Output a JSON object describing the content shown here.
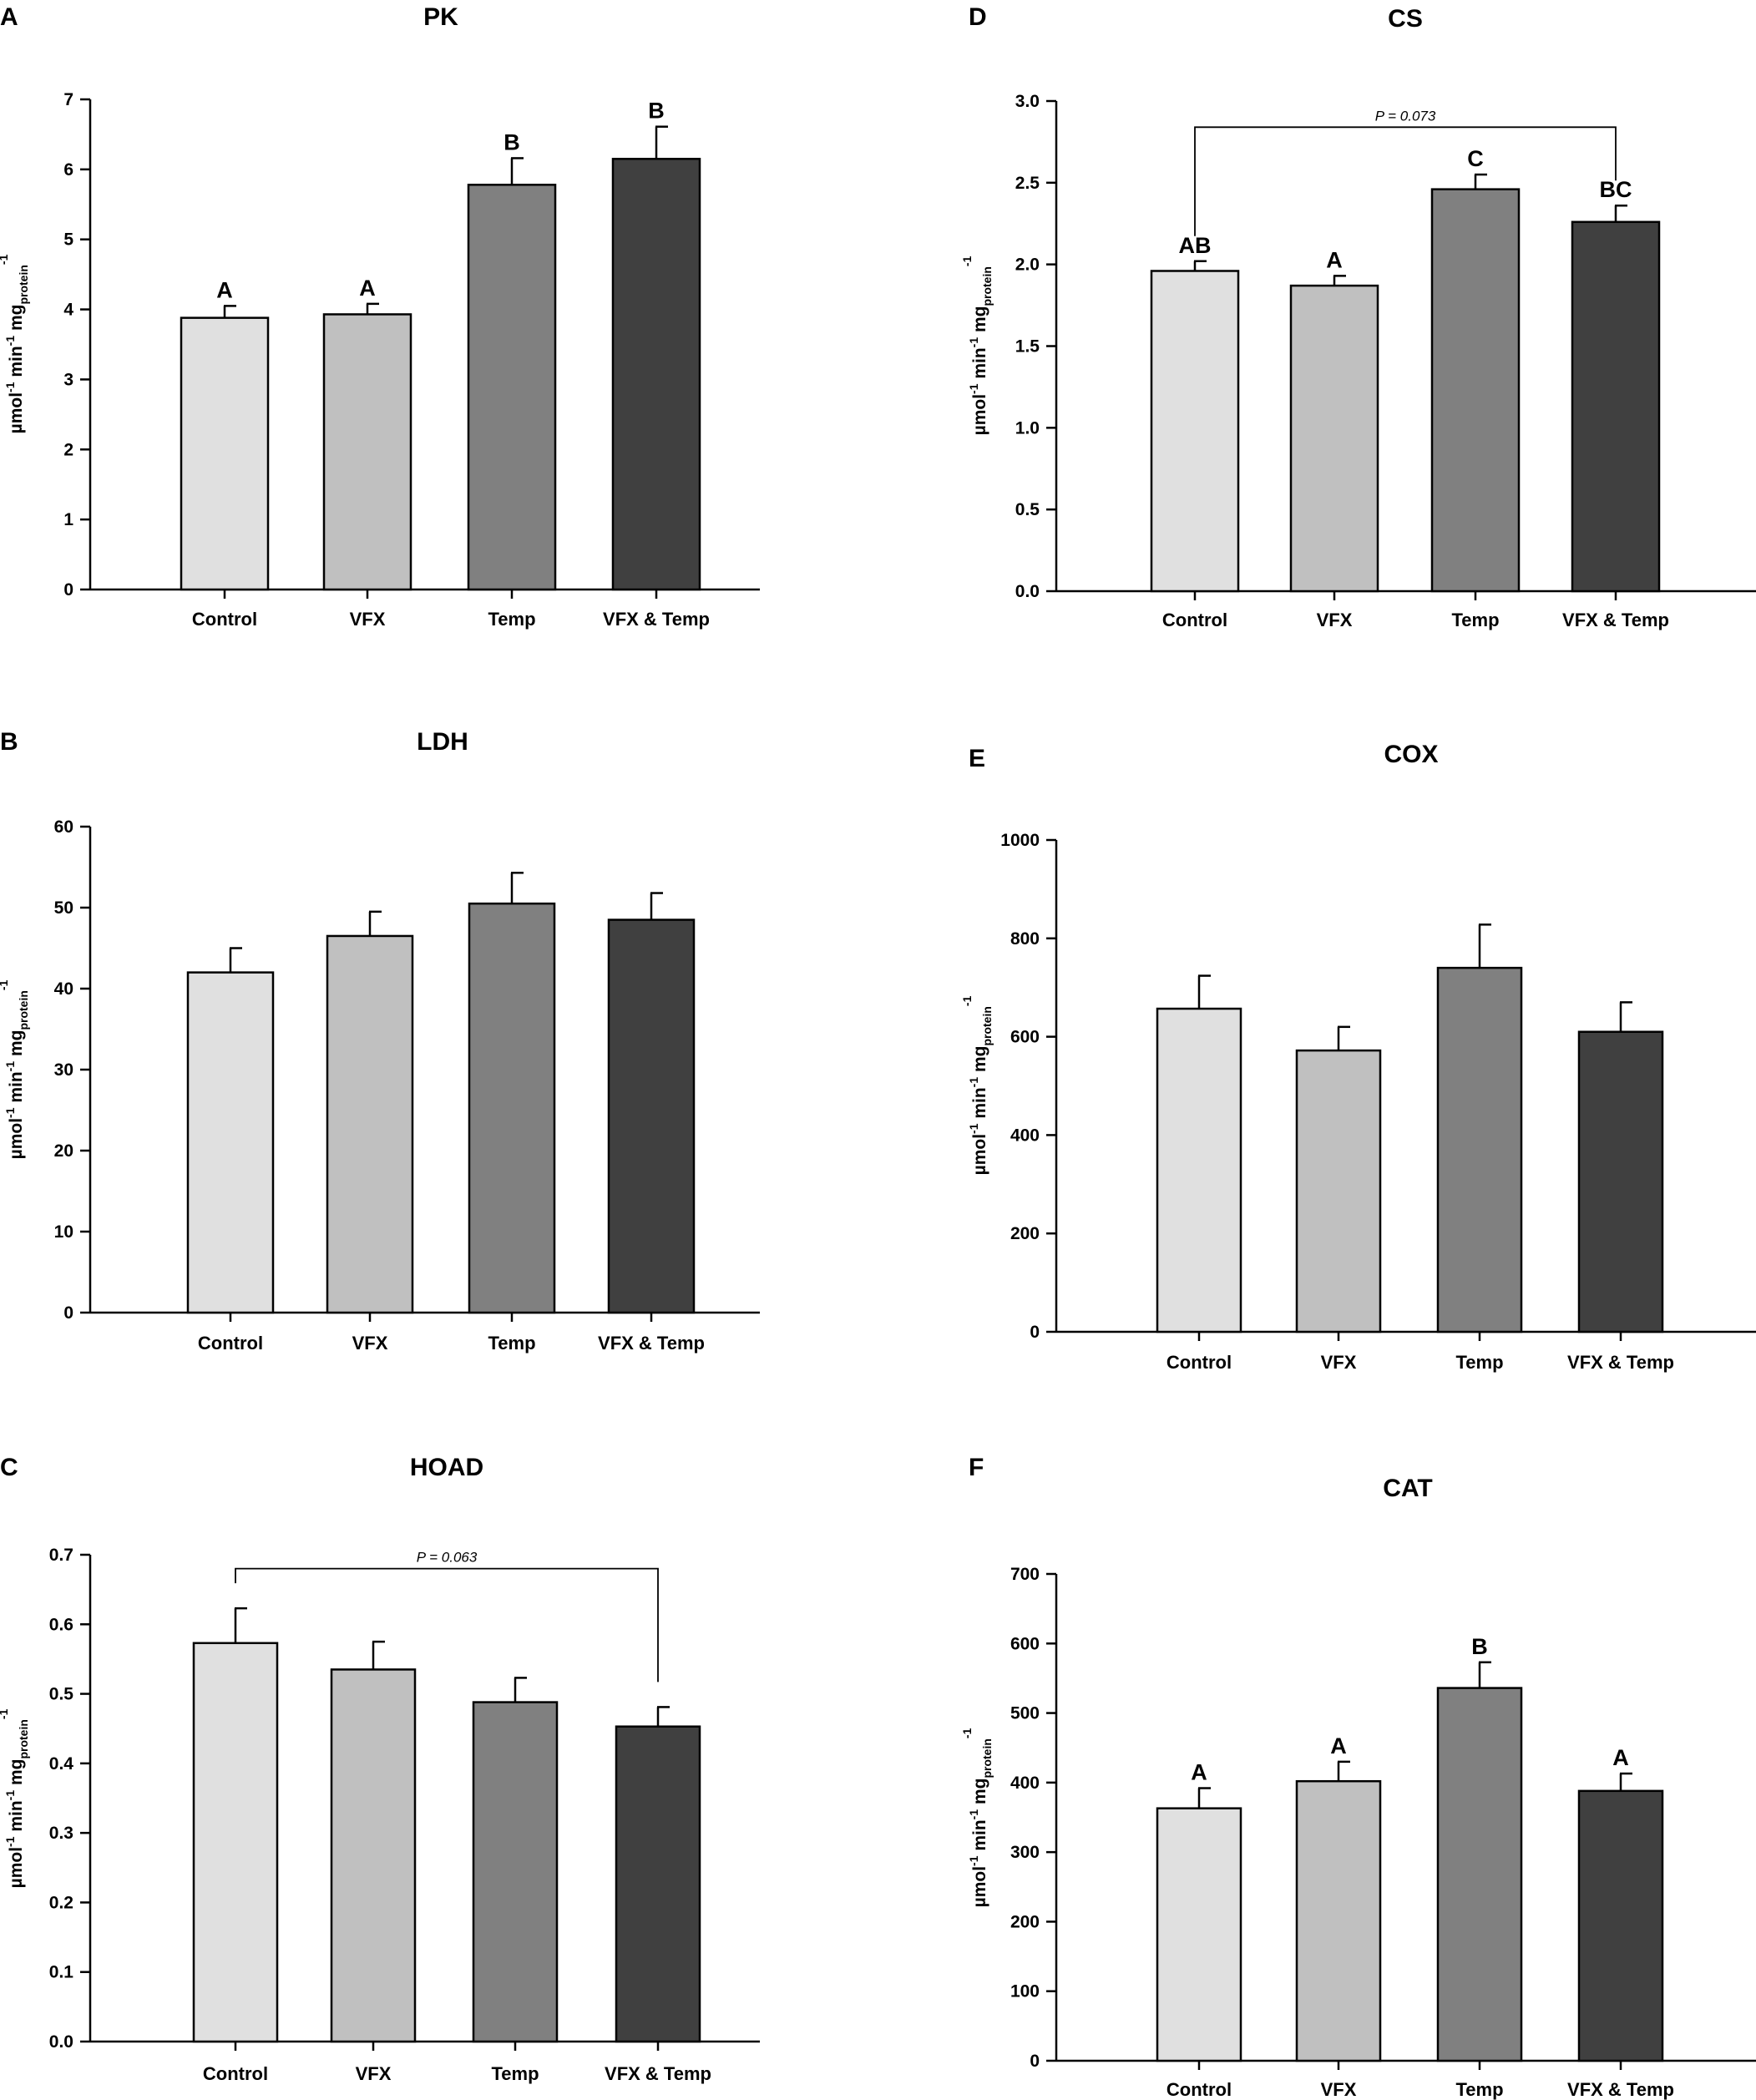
{
  "figure": {
    "description_panels": [
      "A",
      "B",
      "C",
      "D",
      "E",
      "F"
    ]
  },
  "bar_colors": [
    "#e0e0e0",
    "#c0c0c0",
    "#808080",
    "#404040"
  ],
  "ylabel_parts": {
    "main": "µmol",
    "sup1": "-1",
    "mid": " min",
    "sup2": "-1",
    "mid2": " mg",
    "sub": "protein",
    "sup3": "-1"
  },
  "chart_data": [
    {
      "panel": "A",
      "title": "PK",
      "type": "bar",
      "categories": [
        "Control",
        "VFX",
        "Temp",
        "VFX & Temp"
      ],
      "values": [
        3.88,
        3.93,
        5.78,
        6.15
      ],
      "errors": [
        0.17,
        0.15,
        0.38,
        0.46
      ],
      "ylim": [
        0,
        7
      ],
      "ticks": [
        "0",
        "1",
        "2",
        "3",
        "4",
        "5",
        "6",
        "7"
      ],
      "tick_values": [
        0,
        1,
        2,
        3,
        4,
        5,
        6,
        7
      ],
      "significance": [
        "A",
        "A",
        "B",
        "B"
      ],
      "bracket": null,
      "ylabel": "µmol-1 min-1 mgprotein-1"
    },
    {
      "panel": "B",
      "title": "LDH",
      "type": "bar",
      "categories": [
        "Control",
        "VFX",
        "Temp",
        "VFX & Temp"
      ],
      "values": [
        42,
        46.5,
        50.5,
        48.5
      ],
      "errors": [
        3,
        3,
        3.8,
        3.3
      ],
      "ylim": [
        0,
        60
      ],
      "ticks": [
        "0",
        "10",
        "20",
        "30",
        "40",
        "50",
        "60"
      ],
      "tick_values": [
        0,
        10,
        20,
        30,
        40,
        50,
        60
      ],
      "significance": [
        "",
        "",
        "",
        ""
      ],
      "bracket": null,
      "ylabel": "µmol-1 min-1 mgprotein-1"
    },
    {
      "panel": "C",
      "title": "HOAD",
      "type": "bar",
      "categories": [
        "Control",
        "VFX",
        "Temp",
        "VFX & Temp"
      ],
      "values": [
        0.573,
        0.535,
        0.488,
        0.453
      ],
      "errors": [
        0.05,
        0.04,
        0.035,
        0.028
      ],
      "ylim": [
        0,
        0.7
      ],
      "ticks": [
        "0.0",
        "0.1",
        "0.2",
        "0.3",
        "0.4",
        "0.5",
        "0.6",
        "0.7"
      ],
      "tick_values": [
        0,
        0.1,
        0.2,
        0.3,
        0.4,
        0.5,
        0.6,
        0.7
      ],
      "significance": [
        "",
        "",
        "",
        ""
      ],
      "bracket": {
        "from": 0,
        "to": 3,
        "label": "P = 0.063",
        "level": 0.68
      },
      "ylabel": "µmol-1 min-1 mgprotein-1"
    },
    {
      "panel": "D",
      "title": "CS",
      "type": "bar",
      "categories": [
        "Control",
        "VFX",
        "Temp",
        "VFX & Temp"
      ],
      "values": [
        1.96,
        1.87,
        2.46,
        2.26
      ],
      "errors": [
        0.06,
        0.06,
        0.09,
        0.1
      ],
      "ylim": [
        0,
        3.0
      ],
      "ticks": [
        "0.0",
        "0.5",
        "1.0",
        "1.5",
        "2.0",
        "2.5",
        "3.0"
      ],
      "tick_values": [
        0,
        0.5,
        1,
        1.5,
        2,
        2.5,
        3
      ],
      "significance": [
        "AB",
        "A",
        "C",
        "BC"
      ],
      "bracket": {
        "from": 0,
        "to": 3,
        "label": "P = 0.073",
        "level": 2.84
      },
      "ylabel": "µmol-1 min-1 mgprotein-1"
    },
    {
      "panel": "E",
      "title": "COX",
      "type": "bar",
      "categories": [
        "Control",
        "VFX",
        "Temp",
        "VFX & Temp"
      ],
      "values": [
        657,
        572,
        740,
        610
      ],
      "errors": [
        67,
        48,
        88,
        60
      ],
      "ylim": [
        0,
        1000
      ],
      "ticks": [
        "0",
        "200",
        "400",
        "600",
        "800",
        "1000"
      ],
      "tick_values": [
        0,
        200,
        400,
        600,
        800,
        1000
      ],
      "significance": [
        "",
        "",
        "",
        ""
      ],
      "bracket": null,
      "ylabel": "µmol-1 min-1 mgprotein-1"
    },
    {
      "panel": "F",
      "title": "CAT",
      "type": "bar",
      "categories": [
        "Control",
        "VFX",
        "Temp",
        "VFX & Temp"
      ],
      "values": [
        363,
        402,
        536,
        388
      ],
      "errors": [
        29,
        28,
        37,
        25
      ],
      "ylim": [
        0,
        700
      ],
      "ticks": [
        "0",
        "100",
        "200",
        "300",
        "400",
        "500",
        "600",
        "700"
      ],
      "tick_values": [
        0,
        100,
        200,
        300,
        400,
        500,
        600,
        700
      ],
      "significance": [
        "A",
        "A",
        "B",
        "A"
      ],
      "bracket": null,
      "ylabel": "µmol-1 min-1 mgprotein-1"
    }
  ]
}
